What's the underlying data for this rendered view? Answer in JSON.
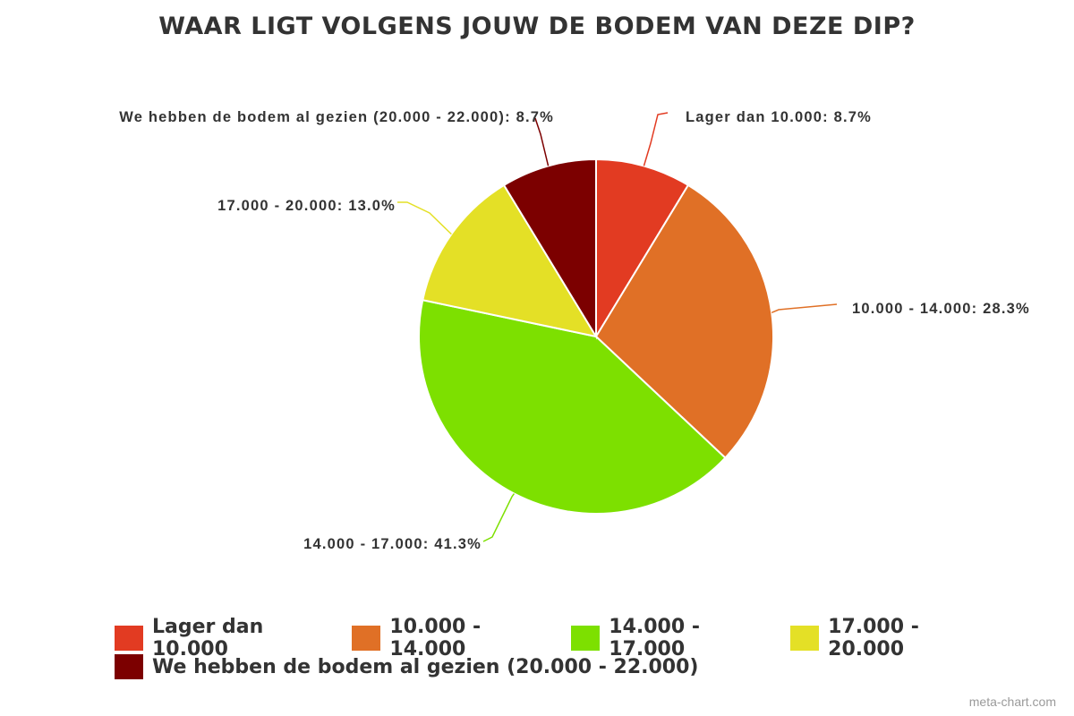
{
  "chart_data": {
    "type": "pie",
    "title": "WAAR LIGT VOLGENS JOUW DE BODEM VAN DEZE DIP?",
    "categories": [
      "Lager dan 10.000",
      "10.000 - 14.000",
      "14.000 - 17.000",
      "17.000 - 20.000",
      "We hebben de bodem al gezien (20.000 - 22.000)"
    ],
    "values": [
      8.7,
      28.3,
      41.3,
      13.0,
      8.7
    ],
    "unit": "%",
    "slice_labels": [
      "Lager dan 10.000: 8.7%",
      "10.000 - 14.000: 28.3%",
      "14.000 - 17.000: 41.3%",
      "17.000 - 20.000: 13.0%",
      "We hebben de bodem al gezien (20.000 - 22.000): 8.7%"
    ],
    "colors": [
      "#e23b22",
      "#e07026",
      "#7de000",
      "#e4e026",
      "#7c0000"
    ],
    "legend": {
      "position": "bottom",
      "entries": [
        "Lager dan 10.000",
        "10.000 - 14.000",
        "14.000 - 17.000",
        "17.000 - 20.000",
        "We hebben de bodem al gezien (20.000 - 22.000)"
      ]
    },
    "start_angle": "top",
    "direction": "clockwise"
  },
  "watermark": "meta-chart.com"
}
